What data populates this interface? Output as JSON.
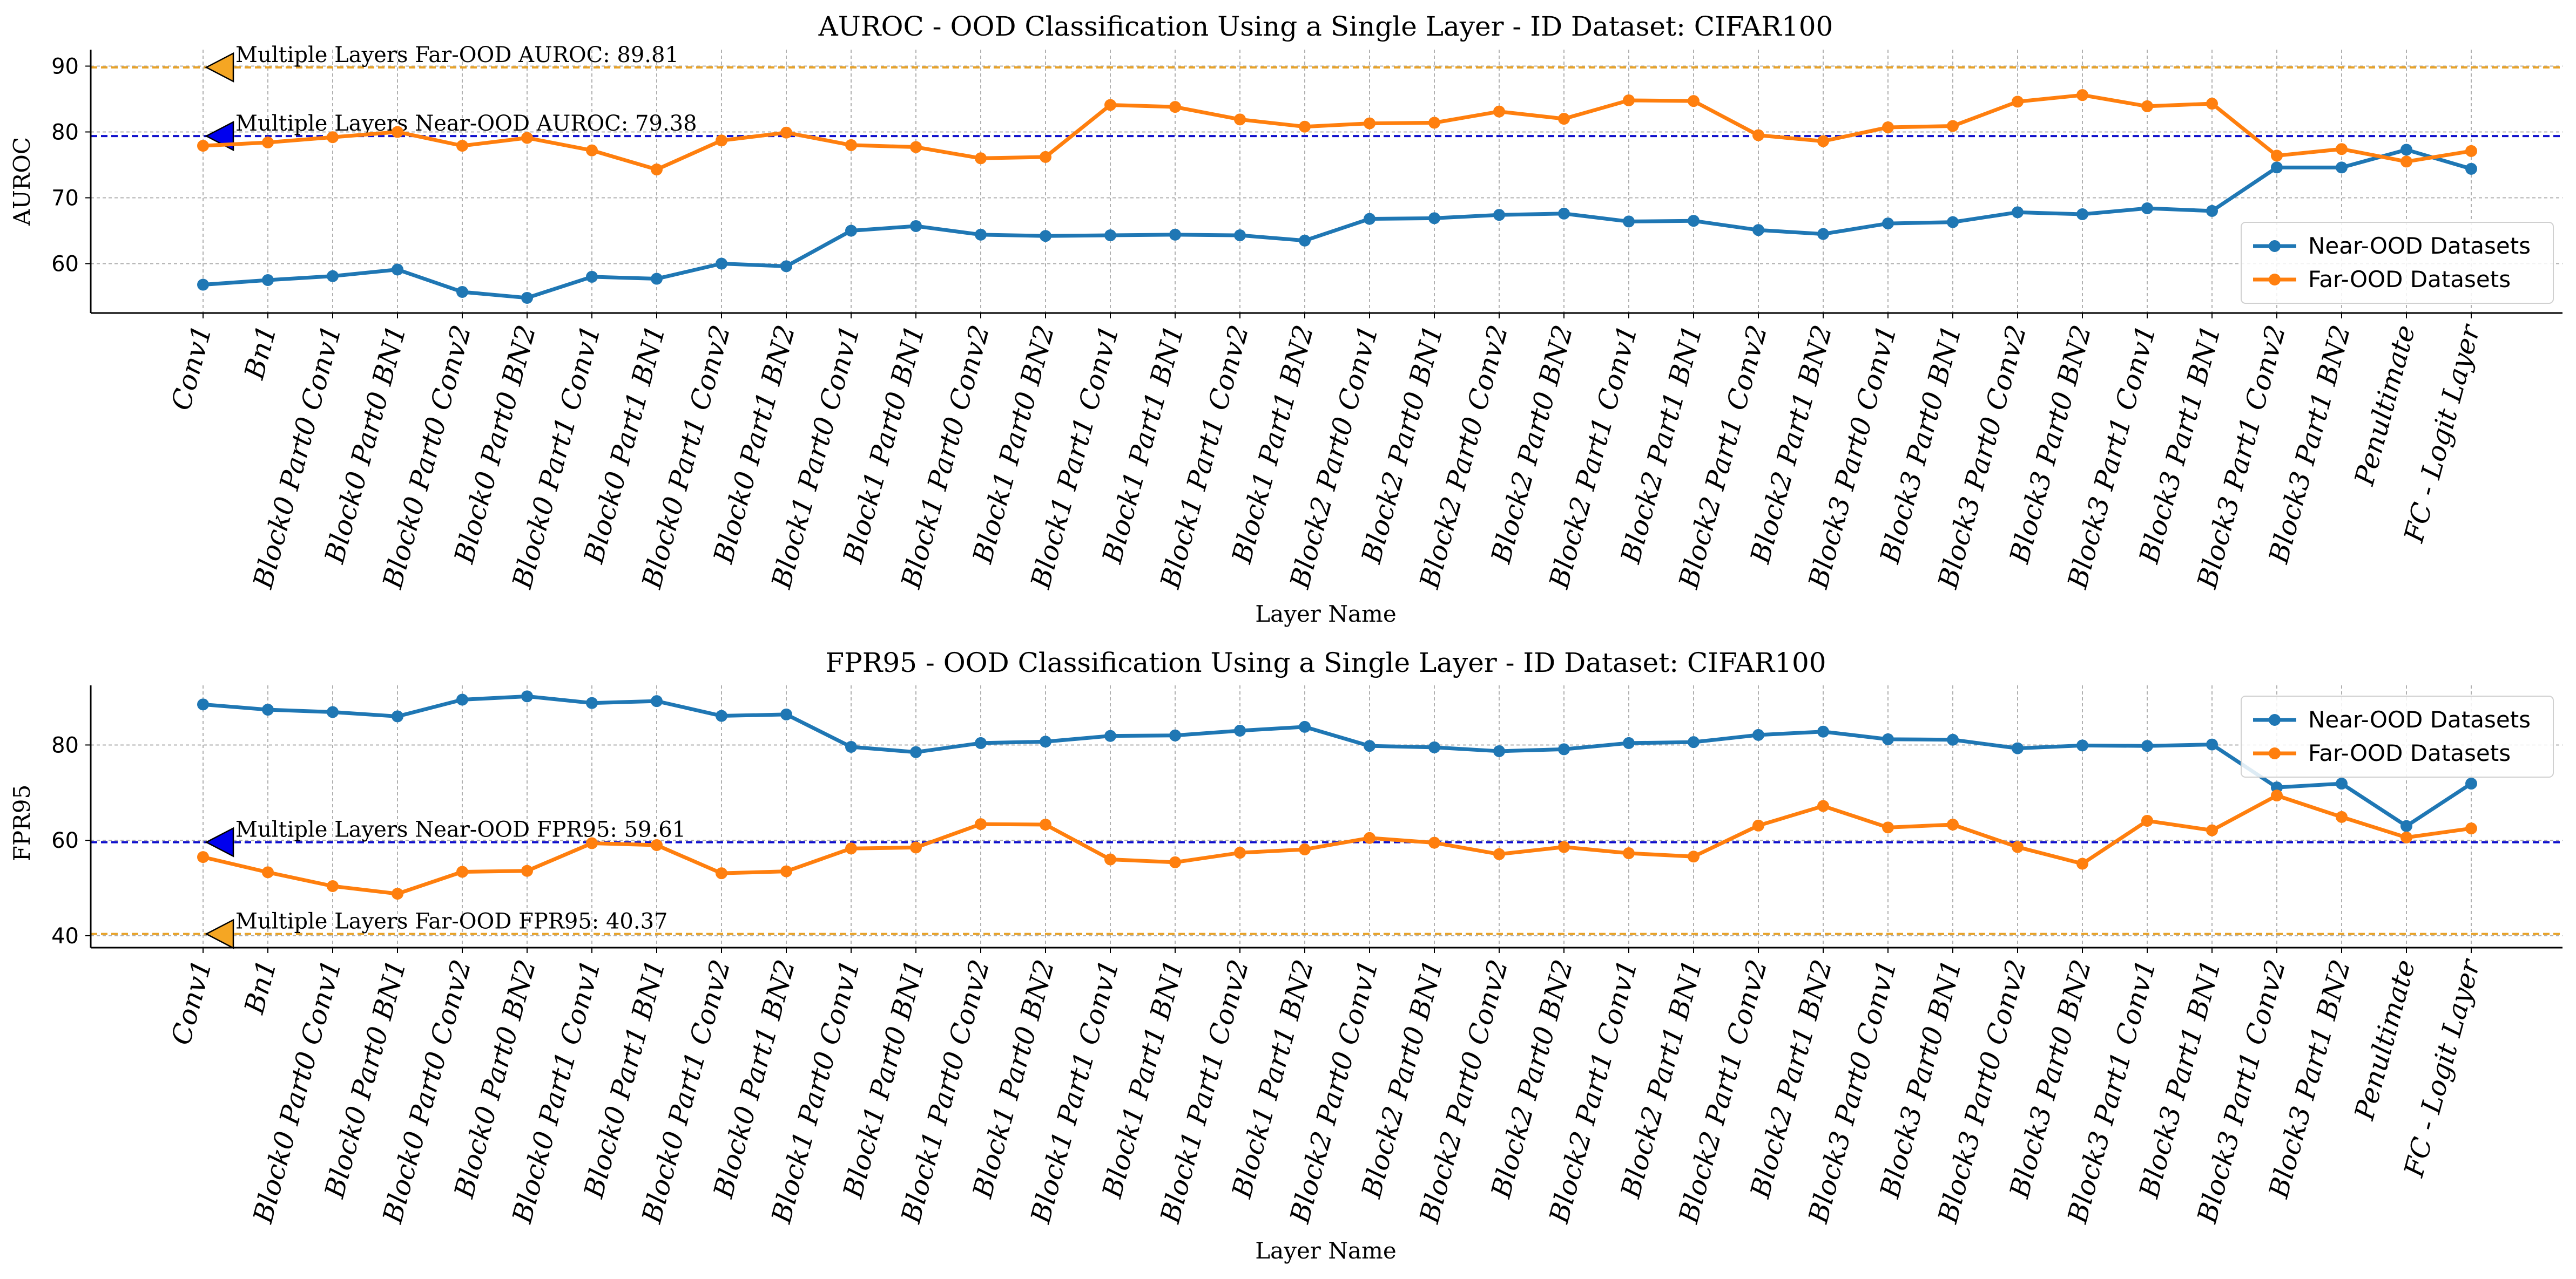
{
  "chart_data": [
    {
      "type": "line",
      "title": "AUROC - OOD Classification Using a Single Layer - ID Dataset: CIFAR100",
      "xlabel": "Layer Name",
      "ylabel": "AUROC",
      "ylim": [
        52.5,
        92.5
      ],
      "yticks": [
        "60",
        "70",
        "80",
        "90"
      ],
      "grid": true,
      "legend_position": "right",
      "categories": [
        "Conv1",
        "Bn1",
        "Block0 Part0 Conv1",
        "Block0 Part0 BN1",
        "Block0 Part0 Conv2",
        "Block0 Part0 BN2",
        "Block0 Part1 Conv1",
        "Block0 Part1 BN1",
        "Block0 Part1 Conv2",
        "Block0 Part1 BN2",
        "Block1 Part0 Conv1",
        "Block1 Part0 BN1",
        "Block1 Part0 Conv2",
        "Block1 Part0 BN2",
        "Block1 Part1 Conv1",
        "Block1 Part1 BN1",
        "Block1 Part1 Conv2",
        "Block1 Part1 BN2",
        "Block2 Part0 Conv1",
        "Block2 Part0 BN1",
        "Block2 Part0 Conv2",
        "Block2 Part0 BN2",
        "Block2 Part1 Conv1",
        "Block2 Part1 BN1",
        "Block2 Part1 Conv2",
        "Block2 Part1 BN2",
        "Block3 Part0 Conv1",
        "Block3 Part0 BN1",
        "Block3 Part0 Conv2",
        "Block3 Part0 BN2",
        "Block3 Part1 Conv1",
        "Block3 Part1 BN1",
        "Block3 Part1 Conv2",
        "Block3 Part1 BN2",
        "Penultimate",
        "FC - Logit Layer"
      ],
      "series": [
        {
          "name": "Near-OOD Datasets",
          "color": "#1f77b4",
          "values": [
            56.8,
            57.5,
            58.1,
            59.1,
            55.7,
            54.8,
            58.0,
            57.7,
            60.0,
            59.6,
            65.0,
            65.7,
            64.4,
            64.2,
            64.3,
            64.4,
            64.3,
            63.5,
            66.8,
            66.9,
            67.4,
            67.6,
            66.4,
            66.5,
            65.1,
            64.5,
            66.1,
            66.3,
            67.8,
            67.5,
            68.4,
            68.0,
            74.6,
            74.6,
            77.3,
            74.4
          ]
        },
        {
          "name": "Far-OOD Datasets",
          "color": "#ff7f0e",
          "values": [
            77.9,
            78.4,
            79.2,
            80.0,
            77.9,
            79.1,
            77.2,
            74.3,
            78.7,
            79.9,
            78.0,
            77.7,
            76.0,
            76.2,
            84.1,
            83.8,
            81.9,
            80.8,
            81.3,
            81.4,
            83.1,
            82.0,
            84.8,
            84.7,
            79.5,
            78.6,
            80.7,
            80.9,
            84.6,
            85.6,
            83.9,
            84.3,
            76.4,
            77.4,
            75.5,
            77.1
          ]
        }
      ],
      "reference_lines": [
        {
          "label": "Multiple Layers Far-OOD AUROC: 89.81",
          "value": 89.81,
          "color": "#e8a32a",
          "marker_color": "#f5a623"
        },
        {
          "label": "Multiple Layers Near-OOD AUROC: 79.38",
          "value": 79.38,
          "color": "#1010cc",
          "marker_color": "#0000ee"
        }
      ]
    },
    {
      "type": "line",
      "title": "FPR95 - OOD Classification Using a Single Layer - ID Dataset: CIFAR100",
      "xlabel": "Layer Name",
      "ylabel": "FPR95",
      "ylim": [
        37.5,
        92.5
      ],
      "yticks": [
        "40",
        "60",
        "80"
      ],
      "grid": true,
      "legend_position": "top-right",
      "categories": [
        "Conv1",
        "Bn1",
        "Block0 Part0 Conv1",
        "Block0 Part0 BN1",
        "Block0 Part0 Conv2",
        "Block0 Part0 BN2",
        "Block0 Part1 Conv1",
        "Block0 Part1 BN1",
        "Block0 Part1 Conv2",
        "Block0 Part1 BN2",
        "Block1 Part0 Conv1",
        "Block1 Part0 BN1",
        "Block1 Part0 Conv2",
        "Block1 Part0 BN2",
        "Block1 Part1 Conv1",
        "Block1 Part1 BN1",
        "Block1 Part1 Conv2",
        "Block1 Part1 BN2",
        "Block2 Part0 Conv1",
        "Block2 Part0 BN1",
        "Block2 Part0 Conv2",
        "Block2 Part0 BN2",
        "Block2 Part1 Conv1",
        "Block2 Part1 BN1",
        "Block2 Part1 Conv2",
        "Block2 Part1 BN2",
        "Block3 Part0 Conv1",
        "Block3 Part0 BN1",
        "Block3 Part0 Conv2",
        "Block3 Part0 BN2",
        "Block3 Part1 Conv1",
        "Block3 Part1 BN1",
        "Block3 Part1 Conv2",
        "Block3 Part1 BN2",
        "Penultimate",
        "FC - Logit Layer"
      ],
      "series": [
        {
          "name": "Near-OOD Datasets",
          "color": "#1f77b4",
          "values": [
            88.5,
            87.4,
            86.9,
            86.0,
            89.5,
            90.2,
            88.8,
            89.2,
            86.1,
            86.4,
            79.6,
            78.5,
            80.4,
            80.7,
            81.9,
            82.0,
            83.0,
            83.8,
            79.8,
            79.5,
            78.7,
            79.1,
            80.4,
            80.6,
            82.1,
            82.8,
            81.2,
            81.1,
            79.3,
            79.9,
            79.8,
            80.1,
            71.1,
            71.9,
            63.0,
            71.9
          ]
        },
        {
          "name": "Far-OOD Datasets",
          "color": "#ff7f0e",
          "values": [
            56.5,
            53.3,
            50.4,
            48.8,
            53.4,
            53.6,
            59.4,
            59.0,
            53.1,
            53.5,
            58.3,
            58.5,
            63.4,
            63.3,
            56.0,
            55.4,
            57.4,
            58.1,
            60.5,
            59.5,
            57.1,
            58.6,
            57.3,
            56.6,
            63.1,
            67.2,
            62.7,
            63.3,
            58.6,
            55.1,
            64.1,
            62.1,
            69.4,
            64.9,
            60.6,
            62.5
          ]
        }
      ],
      "reference_lines": [
        {
          "label": "Multiple Layers Near-OOD FPR95: 59.61",
          "value": 59.61,
          "color": "#1010cc",
          "marker_color": "#0000ee"
        },
        {
          "label": "Multiple Layers Far-OOD FPR95: 40.37",
          "value": 40.37,
          "color": "#e8a32a",
          "marker_color": "#f5a623"
        }
      ]
    }
  ]
}
